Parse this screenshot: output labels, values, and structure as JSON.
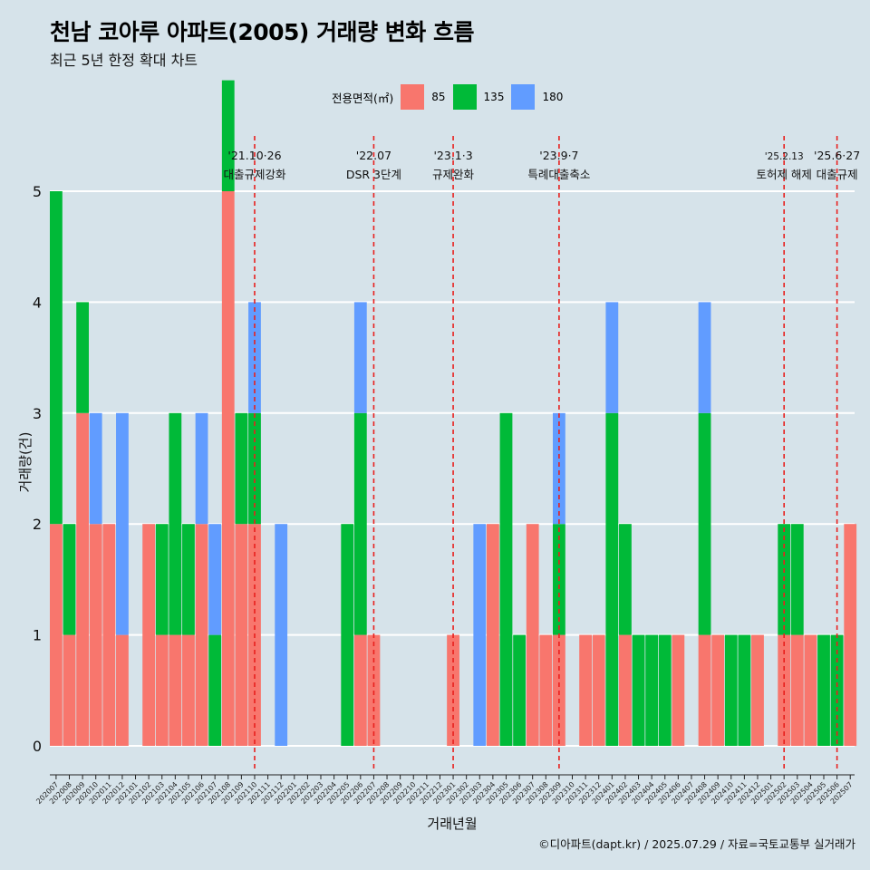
{
  "title": "천남 코아루 아파트(2005) 거래량 변화 흐름",
  "subtitle": "최근 5년 한정 확대 차트",
  "legend": {
    "title": "전용면적(㎡)",
    "items": [
      {
        "label": "85",
        "color": "#f8766d"
      },
      {
        "label": "135",
        "color": "#00ba38"
      },
      {
        "label": "180",
        "color": "#619cff"
      }
    ]
  },
  "caption": "©디아파트(dapt.kr) / 2025.07.29 / 자료=국토교통부 실거래가",
  "chart_data": {
    "type": "bar",
    "xlabel": "거래년월",
    "ylabel": "거래량(건)",
    "ylim": [
      0,
      5
    ],
    "yticks": [
      0,
      1,
      2,
      3,
      4,
      5
    ],
    "grid": true,
    "categories": [
      "202007",
      "202008",
      "202009",
      "202010",
      "202011",
      "202012",
      "202101",
      "202102",
      "202103",
      "202104",
      "202105",
      "202106",
      "202107",
      "202108",
      "202109",
      "202110",
      "202111",
      "202112",
      "202201",
      "202202",
      "202203",
      "202204",
      "202205",
      "202206",
      "202207",
      "202208",
      "202209",
      "202210",
      "202211",
      "202212",
      "202301",
      "202302",
      "202303",
      "202304",
      "202305",
      "202306",
      "202307",
      "202308",
      "202309",
      "202310",
      "202311",
      "202312",
      "202401",
      "202402",
      "202403",
      "202404",
      "202405",
      "202406",
      "202407",
      "202408",
      "202409",
      "202410",
      "202411",
      "202412",
      "202501",
      "202502",
      "202503",
      "202504",
      "202505",
      "202506",
      "202507"
    ],
    "series": [
      {
        "name": "85",
        "color": "#f8766d",
        "values": [
          2,
          1,
          3,
          2,
          2,
          1,
          0,
          2,
          1,
          1,
          1,
          2,
          0,
          5,
          2,
          2,
          0,
          0,
          0,
          0,
          0,
          0,
          0,
          1,
          1,
          0,
          0,
          0,
          0,
          0,
          1,
          0,
          0,
          2,
          0,
          0,
          2,
          1,
          1,
          0,
          1,
          1,
          0,
          1,
          0,
          0,
          0,
          1,
          0,
          1,
          1,
          0,
          0,
          1,
          0,
          1,
          1,
          1,
          0,
          0,
          2
        ]
      },
      {
        "name": "135",
        "color": "#00ba38",
        "values": [
          3,
          1,
          1,
          0,
          0,
          0,
          0,
          0,
          1,
          2,
          1,
          0,
          1,
          1,
          1,
          1,
          0,
          0,
          0,
          0,
          0,
          0,
          2,
          2,
          0,
          0,
          0,
          0,
          0,
          0,
          0,
          0,
          0,
          0,
          3,
          1,
          0,
          0,
          1,
          0,
          0,
          0,
          3,
          1,
          1,
          1,
          1,
          0,
          0,
          2,
          0,
          1,
          1,
          0,
          0,
          1,
          1,
          0,
          1,
          1,
          0
        ]
      },
      {
        "name": "180",
        "color": "#619cff",
        "values": [
          0,
          0,
          0,
          1,
          0,
          2,
          0,
          0,
          0,
          0,
          0,
          1,
          1,
          0,
          0,
          1,
          0,
          2,
          0,
          0,
          0,
          0,
          0,
          1,
          0,
          0,
          0,
          0,
          0,
          0,
          0,
          0,
          2,
          0,
          0,
          0,
          0,
          0,
          1,
          0,
          0,
          0,
          1,
          0,
          0,
          0,
          0,
          0,
          0,
          1,
          0,
          0,
          0,
          0,
          0,
          0,
          0,
          0,
          0,
          0,
          0
        ]
      }
    ],
    "annotations": [
      {
        "x": "202110",
        "date": "'21.10·26",
        "label": "대출규제강화"
      },
      {
        "x": "202207",
        "date": "'22.07",
        "label": "DSR 3단계"
      },
      {
        "x": "202301",
        "date": "'23.1·3",
        "label": "규제완화"
      },
      {
        "x": "202309",
        "date": "'23.9·7",
        "label": "특례대출축소"
      },
      {
        "x": "202502",
        "date": "'25.2.13",
        "label": "토허제 해제"
      },
      {
        "x": "202506",
        "date": "'25.6·27",
        "label": "대출규제"
      }
    ]
  }
}
